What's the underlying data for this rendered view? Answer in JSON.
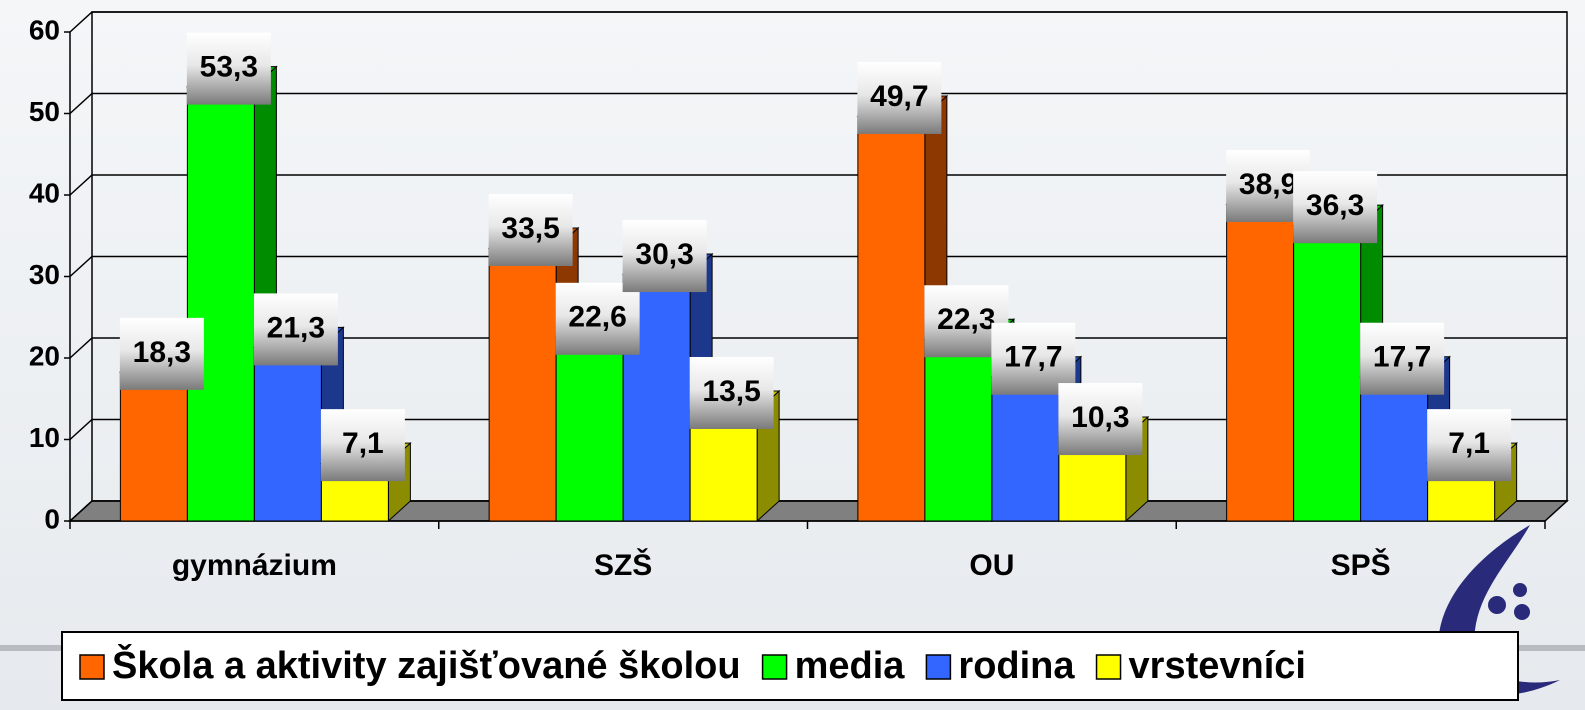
{
  "chart_data": {
    "type": "bar3d",
    "categories": [
      "gymnázium",
      "SZŠ",
      "OU",
      "SPŠ"
    ],
    "series": [
      {
        "name": "Škola a aktivity zajišťované školou",
        "color": "#ff6600",
        "values": [
          18.3,
          33.5,
          49.7,
          38.9
        ],
        "value_labels": [
          "18,3",
          "33,5",
          "49,7",
          "38,9"
        ]
      },
      {
        "name": "media",
        "color": "#00ff00",
        "values": [
          53.3,
          22.6,
          22.3,
          36.3
        ],
        "value_labels": [
          "53,3",
          "22,6",
          "22,3",
          "36,3"
        ]
      },
      {
        "name": "rodina",
        "color": "#3366ff",
        "values": [
          21.3,
          30.3,
          17.7,
          17.7
        ],
        "value_labels": [
          "21,3",
          "30,3",
          "17,7",
          "17,7"
        ]
      },
      {
        "name": "vrstevníci",
        "color": "#ffff00",
        "values": [
          7.1,
          13.5,
          10.3,
          7.1
        ],
        "value_labels": [
          "7,1",
          "13,5",
          "10,3",
          "7,1"
        ]
      }
    ],
    "ylim": [
      0,
      60
    ],
    "yticks": [
      0,
      10,
      20,
      30,
      40,
      50,
      60
    ],
    "grid": true,
    "legend": "bottom"
  }
}
